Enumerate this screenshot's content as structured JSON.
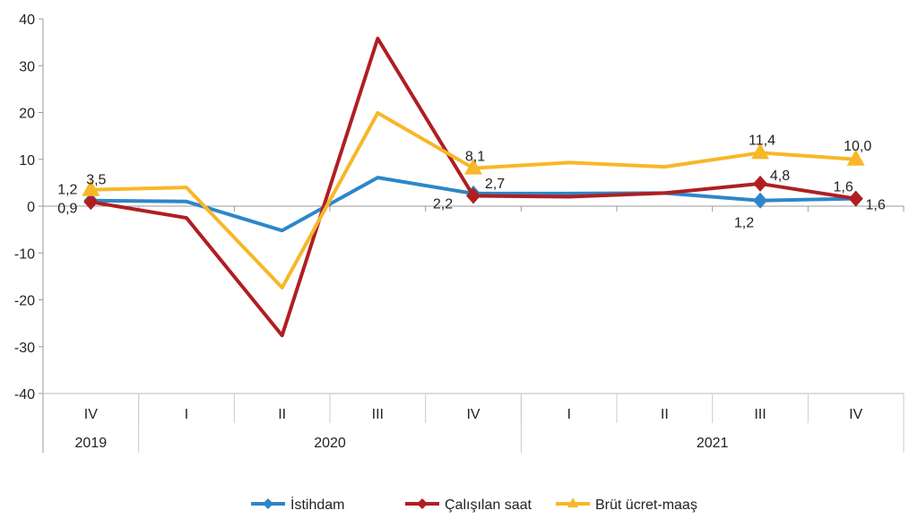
{
  "chart_data": {
    "type": "line",
    "title": "",
    "xlabel": "",
    "ylabel": "",
    "ylim": [
      -40,
      40
    ],
    "yticks": [
      -40,
      -30,
      -20,
      -10,
      0,
      10,
      20,
      30,
      40
    ],
    "grid": false,
    "legend_position": "bottom",
    "categories": [
      "IV",
      "I",
      "II",
      "III",
      "IV",
      "I",
      "II",
      "III",
      "IV"
    ],
    "year_groups": [
      {
        "label": "2019",
        "span": 1
      },
      {
        "label": "2020",
        "span": 4
      },
      {
        "label": "2021",
        "span": 4
      }
    ],
    "series": [
      {
        "name": "İstihdam",
        "color": "#2E86C8",
        "marker": "diamond",
        "values": [
          1.2,
          1.0,
          -5.2,
          6.1,
          2.7,
          2.7,
          2.8,
          1.2,
          1.6
        ],
        "labels": {
          "0": "1,2",
          "4": "2,7",
          "7": "1,2",
          "8": "1,6"
        }
      },
      {
        "name": "Çalışılan saat",
        "color": "#B01E22",
        "marker": "diamond",
        "values": [
          0.9,
          -2.5,
          -27.6,
          35.8,
          2.2,
          2.0,
          2.8,
          4.8,
          1.6
        ],
        "labels": {
          "0": "0,9",
          "4": "2,2",
          "7": "4,8",
          "8": "1,6"
        }
      },
      {
        "name": "Brüt ücret-maaş",
        "color": "#F7B728",
        "marker": "triangle",
        "values": [
          3.5,
          4.0,
          -17.4,
          19.9,
          8.1,
          9.3,
          8.4,
          11.4,
          10.0
        ],
        "labels": {
          "0": "3,5",
          "4": "8,1",
          "7": "11,4",
          "8": "10,0"
        }
      }
    ]
  }
}
